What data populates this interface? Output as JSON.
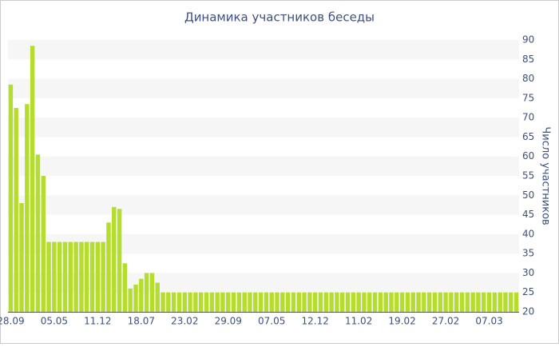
{
  "chart_data": {
    "type": "bar",
    "title": "Динамика участников беседы",
    "y_label": "Число участников",
    "categories": [
      "28.09",
      null,
      null,
      null,
      null,
      null,
      null,
      null,
      "05.05",
      null,
      null,
      null,
      null,
      null,
      null,
      null,
      "11.12",
      null,
      null,
      null,
      null,
      null,
      null,
      null,
      "18.07",
      null,
      null,
      null,
      null,
      null,
      null,
      null,
      "23.02",
      null,
      null,
      null,
      null,
      null,
      null,
      null,
      "29.09",
      null,
      null,
      null,
      null,
      null,
      null,
      null,
      "07.05",
      null,
      null,
      null,
      null,
      null,
      null,
      null,
      "12.12",
      null,
      null,
      null,
      null,
      null,
      null,
      null,
      "11.02",
      null,
      null,
      null,
      null,
      null,
      null,
      null,
      "19.02",
      null,
      null,
      null,
      null,
      null,
      null,
      null,
      "27.02",
      null,
      null,
      null,
      null,
      null,
      null,
      null,
      "07.03",
      null,
      null,
      null,
      null,
      null
    ],
    "values": [
      78.5,
      72.5,
      48,
      73.5,
      88.5,
      60.5,
      55,
      38,
      38,
      38,
      38,
      38,
      38,
      38,
      38,
      38,
      38,
      38,
      43,
      47,
      46.5,
      32.5,
      26,
      27,
      28.5,
      30,
      30,
      27.5,
      25,
      25,
      25,
      25,
      25,
      25,
      25,
      25,
      25,
      25,
      25,
      25,
      25,
      25,
      25,
      25,
      25,
      25,
      25,
      25,
      25,
      25,
      25,
      25,
      25,
      25,
      25,
      25,
      25,
      25,
      25,
      25,
      25,
      25,
      25,
      25,
      25,
      25,
      25,
      25,
      25,
      25,
      25,
      25,
      25,
      25,
      25,
      25,
      25,
      25,
      25,
      25,
      25,
      25,
      25,
      25,
      25,
      25,
      25,
      25,
      25,
      25,
      25,
      25,
      25,
      25
    ],
    "color": "#b5dd2e",
    "ylim": [
      20,
      90
    ],
    "yticks": [
      20,
      25,
      30,
      35,
      40,
      45,
      50,
      55,
      60,
      65,
      70,
      75,
      80,
      85,
      90
    ],
    "grid": "stripes",
    "y_axis_side": "right"
  }
}
